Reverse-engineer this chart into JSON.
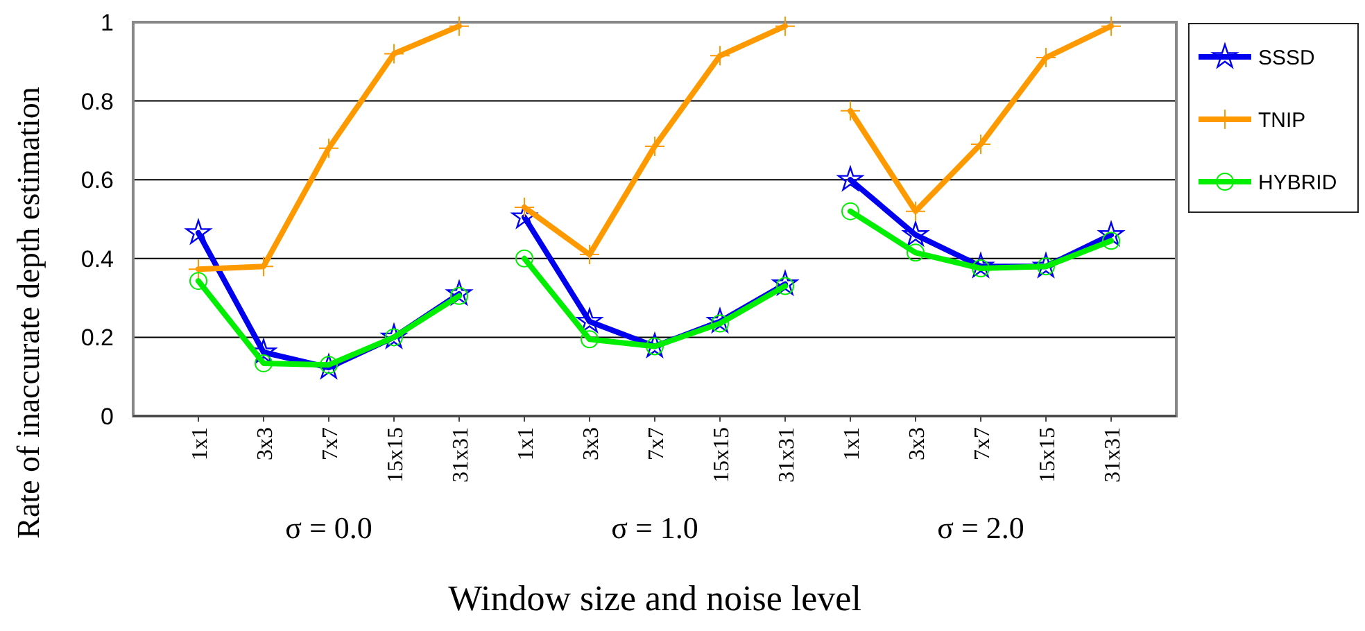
{
  "chart_data": {
    "type": "line",
    "xlabel": "Window size and noise level",
    "ylabel": "Rate of inaccurate depth estimation",
    "categories": [
      "1x1",
      "3x3",
      "7x7",
      "15x15",
      "31x31",
      "1x1",
      "3x3",
      "7x7",
      "15x15",
      "31x31",
      "1x1",
      "3x3",
      "7x7",
      "15x15",
      "31x31"
    ],
    "annotations": [
      "σ = 0.0",
      "σ = 1.0",
      "σ = 2.0"
    ],
    "ylim": [
      0,
      1
    ],
    "yticks": [
      0,
      0.2,
      0.4,
      0.6,
      0.8,
      1
    ],
    "grid": "y",
    "legend": "right",
    "series": [
      {
        "name": "SSSD",
        "color": "#0000ee",
        "marker": "star",
        "values": [
          0.465,
          0.162,
          0.123,
          0.2,
          0.31,
          0.505,
          0.24,
          0.177,
          0.24,
          0.335,
          0.6,
          0.46,
          0.38,
          0.38,
          0.46
        ]
      },
      {
        "name": "TNIP",
        "color": "#ff9900",
        "marker": "cross",
        "values": [
          0.373,
          0.38,
          0.68,
          0.92,
          0.99,
          0.53,
          0.41,
          0.685,
          0.915,
          0.99,
          0.775,
          0.52,
          0.69,
          0.91,
          0.99
        ]
      },
      {
        "name": "HYBRID",
        "color": "#00ee00",
        "marker": "circle",
        "values": [
          0.343,
          0.134,
          0.13,
          0.2,
          0.305,
          0.4,
          0.195,
          0.177,
          0.235,
          0.33,
          0.52,
          0.415,
          0.375,
          0.38,
          0.445
        ]
      }
    ]
  }
}
